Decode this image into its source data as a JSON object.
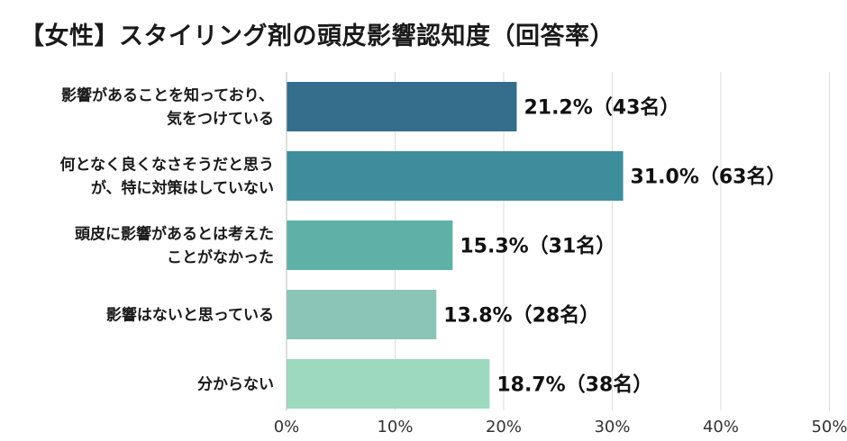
{
  "title": "【女性】スタイリング剤の頭皮影響認知度（回答率）",
  "chart_data": {
    "type": "bar",
    "orientation": "horizontal",
    "title": "【女性】スタイリング剤の頭皮影響認知度（回答率）",
    "categories": [
      [
        "影響があることを知っており、",
        "気をつけている"
      ],
      [
        "何となく良くなさそうだと思う",
        "が、特に対策はしていない"
      ],
      [
        "頭皮に影響があるとは考えた",
        "ことがなかった"
      ],
      [
        "影響はないと思っている"
      ],
      [
        "分からない"
      ]
    ],
    "values": [
      21.2,
      31.0,
      15.3,
      13.8,
      18.7
    ],
    "data_labels": [
      "21.2%（43名）",
      "31.0%（63名）",
      "15.3%（31名）",
      "13.8%（28名）",
      "18.7%（38名）"
    ],
    "bar_colors": [
      "#356d8c",
      "#3e8d9c",
      "#5fb0a7",
      "#8ac5b8",
      "#9cd9bf"
    ],
    "xlim": [
      0,
      50
    ],
    "xticks": [
      0,
      10,
      20,
      30,
      40,
      50
    ],
    "xtick_labels": [
      "0%",
      "10%",
      "20%",
      "30%",
      "40%",
      "50%"
    ],
    "grid": true,
    "legend": "none"
  }
}
